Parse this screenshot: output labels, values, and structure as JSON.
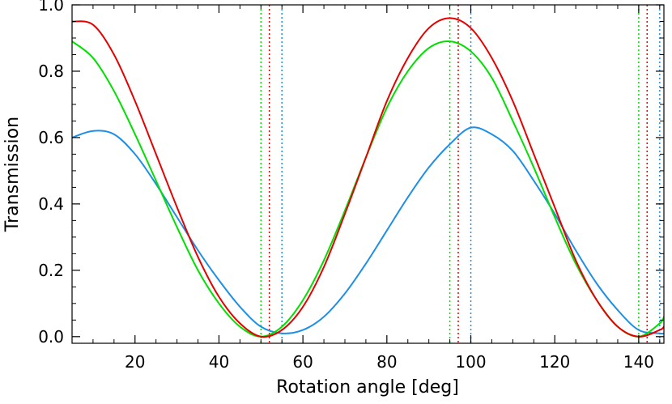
{
  "chart_data": {
    "type": "line",
    "title": "",
    "xlabel": "Rotation angle [deg]",
    "ylabel": "Transmission",
    "xlim": [
      5,
      146
    ],
    "ylim": [
      -0.02,
      1.0
    ],
    "grid": false,
    "x_ticks": [
      20,
      40,
      60,
      80,
      100,
      120,
      140
    ],
    "x_tick_labels": [
      "20",
      "40",
      "60",
      "80",
      "100",
      "120",
      "140"
    ],
    "y_ticks": [
      0.0,
      0.2,
      0.4,
      0.6,
      0.8,
      1.0
    ],
    "y_tick_labels": [
      "0.0",
      "0.2",
      "0.4",
      "0.6",
      "0.8",
      "1.0"
    ],
    "series": [
      {
        "color": "#1e8fe6",
        "x": [
          5,
          10,
          15,
          20,
          25,
          30,
          35,
          40,
          45,
          50,
          55,
          60,
          65,
          70,
          75,
          80,
          85,
          90,
          95,
          100,
          105,
          110,
          115,
          120,
          125,
          130,
          135,
          140,
          145,
          146
        ],
        "y": [
          0.6,
          0.62,
          0.61,
          0.55,
          0.46,
          0.36,
          0.26,
          0.17,
          0.09,
          0.03,
          0.01,
          0.02,
          0.06,
          0.13,
          0.22,
          0.32,
          0.42,
          0.51,
          0.58,
          0.63,
          0.61,
          0.56,
          0.47,
          0.37,
          0.26,
          0.16,
          0.08,
          0.02,
          0.01,
          0.01
        ]
      },
      {
        "color": "#00e000",
        "x": [
          5,
          10,
          15,
          20,
          25,
          30,
          35,
          40,
          45,
          50,
          55,
          60,
          65,
          70,
          75,
          80,
          85,
          90,
          95,
          100,
          105,
          110,
          115,
          120,
          125,
          130,
          135,
          140,
          145,
          146
        ],
        "y": [
          0.89,
          0.84,
          0.74,
          0.61,
          0.47,
          0.33,
          0.2,
          0.1,
          0.03,
          0.0,
          0.03,
          0.11,
          0.23,
          0.38,
          0.54,
          0.69,
          0.8,
          0.87,
          0.89,
          0.86,
          0.78,
          0.65,
          0.51,
          0.36,
          0.22,
          0.11,
          0.03,
          0.0,
          0.04,
          0.06
        ]
      },
      {
        "color": "#e60000",
        "x": [
          5,
          10,
          15,
          20,
          25,
          30,
          35,
          40,
          45,
          50,
          55,
          60,
          65,
          70,
          75,
          80,
          85,
          90,
          95,
          100,
          105,
          110,
          115,
          120,
          125,
          130,
          135,
          140,
          145,
          146
        ],
        "y": [
          0.95,
          0.94,
          0.85,
          0.71,
          0.55,
          0.39,
          0.24,
          0.12,
          0.04,
          0.0,
          0.02,
          0.09,
          0.21,
          0.37,
          0.54,
          0.71,
          0.84,
          0.93,
          0.96,
          0.93,
          0.84,
          0.71,
          0.55,
          0.39,
          0.23,
          0.11,
          0.03,
          0.0,
          0.02,
          0.03
        ]
      }
    ],
    "vlines": [
      {
        "x": 50,
        "color": "#00e000"
      },
      {
        "x": 52,
        "color": "#e60000"
      },
      {
        "x": 55,
        "color": "#1e8fe6"
      },
      {
        "x": 95,
        "color": "#00e000"
      },
      {
        "x": 97,
        "color": "#e60000"
      },
      {
        "x": 100,
        "color": "#1e8fe6"
      },
      {
        "x": 140,
        "color": "#00e000"
      },
      {
        "x": 142,
        "color": "#e60000"
      },
      {
        "x": 145,
        "color": "#1e8fe6"
      }
    ]
  }
}
